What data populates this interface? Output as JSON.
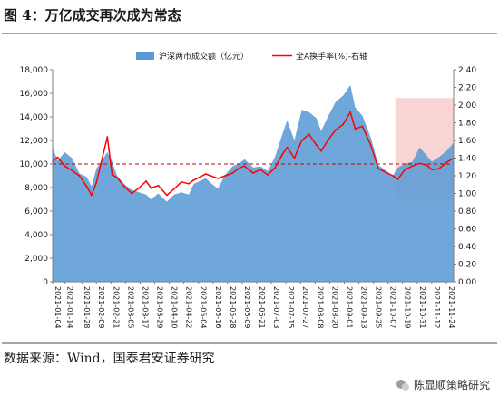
{
  "figure": {
    "title": "图 4：万亿成交再次成为常态",
    "source": "数据来源：Wind，国泰君安证券研究",
    "watermark": "陈显顺策略研究"
  },
  "colors": {
    "area": "#5b9bd5",
    "line": "#ff0000",
    "highlight": "#f7c6c6",
    "reference": "#c00000",
    "rule": "#a6a6a6"
  },
  "chart_data": {
    "type": "area",
    "legend_position": "top",
    "grid": false,
    "xlabel": "",
    "ylabel": "",
    "x": [
      "2021-01-04",
      "2021-01-08",
      "2021-01-14",
      "2021-01-20",
      "2021-01-26",
      "2021-02-01",
      "2021-02-05",
      "2021-02-09",
      "2021-02-18",
      "2021-02-22",
      "2021-02-26",
      "2021-03-04",
      "2021-03-10",
      "2021-03-16",
      "2021-03-22",
      "2021-03-26",
      "2021-04-01",
      "2021-04-08",
      "2021-04-14",
      "2021-04-20",
      "2021-04-26",
      "2021-04-30",
      "2021-05-10",
      "2021-05-14",
      "2021-05-20",
      "2021-05-26",
      "2021-06-01",
      "2021-06-07",
      "2021-06-11",
      "2021-06-18",
      "2021-06-24",
      "2021-06-30",
      "2021-07-06",
      "2021-07-12",
      "2021-07-16",
      "2021-07-22",
      "2021-07-28",
      "2021-08-03",
      "2021-08-09",
      "2021-08-13",
      "2021-08-19",
      "2021-08-25",
      "2021-08-31",
      "2021-09-06",
      "2021-09-10",
      "2021-09-16",
      "2021-09-23",
      "2021-09-29",
      "2021-10-11",
      "2021-10-15",
      "2021-10-21",
      "2021-10-27",
      "2021-11-02",
      "2021-11-08",
      "2021-11-12",
      "2021-11-18",
      "2021-11-24",
      "2021-11-30"
    ],
    "x_tick_labels": [
      "2021-01-04",
      "2021-01-14",
      "2021-01-28",
      "2021-02-09",
      "2021-02-21",
      "2021-03-05",
      "2021-03-17",
      "2021-03-29",
      "2021-04-10",
      "2021-04-22",
      "2021-05-04",
      "2021-05-16",
      "2021-05-28",
      "2021-06-09",
      "2021-06-21",
      "2021-07-03",
      "2021-07-15",
      "2021-07-27",
      "2021-08-08",
      "2021-08-20",
      "2021-09-01",
      "2021-09-13",
      "2021-09-25",
      "2021-10-07",
      "2021-10-19",
      "2021-10-31",
      "2021-11-12",
      "2021-11-24"
    ],
    "y_left_ticks": [
      "0",
      "2,000",
      "4,000",
      "6,000",
      "8,000",
      "10,000",
      "12,000",
      "14,000",
      "16,000",
      "18,000"
    ],
    "y_right_ticks": [
      "0.00",
      "0.20",
      "0.40",
      "0.60",
      "0.80",
      "1.00",
      "1.20",
      "1.40",
      "1.60",
      "1.80",
      "2.00",
      "2.20",
      "2.40"
    ],
    "y_left_lim": [
      0,
      18000
    ],
    "y_right_lim": [
      0,
      2.4
    ],
    "series": [
      {
        "name": "沪深两市成交额（亿元）",
        "type": "area",
        "axis": "left",
        "values": [
          11400,
          10300,
          11000,
          10500,
          9200,
          8900,
          8100,
          9600,
          11000,
          10200,
          9000,
          8300,
          7800,
          7600,
          7400,
          7000,
          7500,
          6800,
          7400,
          7600,
          7400,
          8300,
          8800,
          8400,
          7900,
          9100,
          9800,
          10100,
          10400,
          9700,
          9800,
          9400,
          10600,
          12500,
          13700,
          12000,
          14600,
          14400,
          13900,
          12800,
          14100,
          15300,
          15800,
          16700,
          14800,
          14100,
          12200,
          9900,
          9000,
          9700,
          10000,
          10200,
          11400,
          10700,
          10200,
          10600,
          11100,
          11800
        ]
      },
      {
        "name": "全A换手率(%)-右轴",
        "type": "line",
        "axis": "right",
        "values": [
          1.36,
          1.41,
          1.31,
          1.26,
          1.2,
          1.08,
          0.98,
          1.12,
          1.64,
          1.21,
          1.18,
          1.08,
          1.0,
          1.06,
          1.14,
          1.06,
          1.09,
          0.98,
          1.05,
          1.13,
          1.11,
          1.15,
          1.22,
          1.2,
          1.17,
          1.2,
          1.23,
          1.29,
          1.31,
          1.23,
          1.27,
          1.21,
          1.29,
          1.44,
          1.52,
          1.4,
          1.6,
          1.67,
          1.55,
          1.48,
          1.61,
          1.72,
          1.78,
          1.92,
          1.73,
          1.76,
          1.54,
          1.28,
          1.2,
          1.16,
          1.27,
          1.31,
          1.34,
          1.32,
          1.27,
          1.28,
          1.35,
          1.4
        ]
      }
    ],
    "reference_line": {
      "axis": "left",
      "value": 10000,
      "style": "dashed"
    },
    "highlight_range": {
      "x_start": "2021-10-13",
      "x_end": "2021-11-30",
      "y_left": [
        7000,
        15600
      ]
    }
  }
}
